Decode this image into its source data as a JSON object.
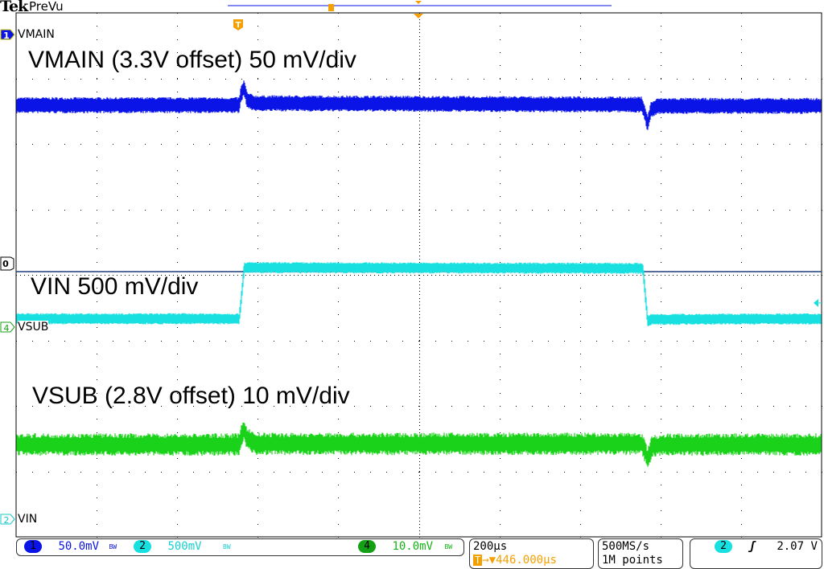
{
  "header": {
    "brand": "Tek",
    "mode": "PreVu"
  },
  "colors": {
    "ch1": "#0a14e6",
    "ch2": "#19e0e0",
    "ch4": "#19d219",
    "trigger": "#f5a000",
    "ref_line": "#1e3c78",
    "grid": "#000000"
  },
  "chart_data": {
    "type": "line",
    "x_unit": "µs (relative to trigger)",
    "xlim": [
      -554,
      1446
    ],
    "y_unit": "divisions",
    "ylim": [
      -4,
      4
    ],
    "grid": true,
    "divisions": {
      "horizontal": 10,
      "vertical": 8
    },
    "series": [
      {
        "name": "VMAIN",
        "channel": "1",
        "color": "#0a14e6",
        "points": [
          [
            -554,
            2.59
          ],
          [
            0,
            2.59
          ],
          [
            4,
            2.75
          ],
          [
            12,
            2.86
          ],
          [
            20,
            2.66
          ],
          [
            40,
            2.62
          ],
          [
            1000,
            2.6
          ],
          [
            1008,
            2.45
          ],
          [
            1014,
            2.3
          ],
          [
            1022,
            2.52
          ],
          [
            1040,
            2.58
          ],
          [
            1446,
            2.58
          ]
        ]
      },
      {
        "name": "VIN",
        "channel": "2",
        "color": "#19e0e0",
        "points": [
          [
            -554,
            -0.67
          ],
          [
            0,
            -0.67
          ],
          [
            12,
            0.11
          ],
          [
            1002,
            0.1
          ],
          [
            1014,
            -0.72
          ],
          [
            1022,
            -0.68
          ],
          [
            1446,
            -0.67
          ]
        ]
      },
      {
        "name": "VSUB",
        "channel": "4",
        "color": "#19d219",
        "points": [
          [
            -554,
            -2.59
          ],
          [
            0,
            -2.59
          ],
          [
            6,
            -2.45
          ],
          [
            12,
            -2.36
          ],
          [
            20,
            -2.5
          ],
          [
            40,
            -2.58
          ],
          [
            1000,
            -2.58
          ],
          [
            1008,
            -2.7
          ],
          [
            1014,
            -2.82
          ],
          [
            1024,
            -2.62
          ],
          [
            1050,
            -2.59
          ],
          [
            1446,
            -2.59
          ]
        ]
      }
    ],
    "annotations": [
      "VMAIN (3.3V offset) 50 mV/div",
      "VIN 500 mV/div",
      "VSUB (2.8V offset) 10 mV/div"
    ]
  },
  "channels": {
    "ch1": {
      "number": "1",
      "label": "VMAIN",
      "scale": "50.0mV",
      "bw": "BW"
    },
    "ch2": {
      "number": "2",
      "label": "VIN",
      "scale": "500mV",
      "bw": "BW"
    },
    "ch4": {
      "number": "4",
      "label": "VSUB",
      "scale": "10.0mV",
      "bw": "BW"
    },
    "ref": {
      "label": "0"
    }
  },
  "timebase": {
    "scale": "200µs",
    "trigger_marker": "T",
    "position": "→▼446.000µs"
  },
  "acquisition": {
    "sample_rate": "500MS/s",
    "record_length": "1M points"
  },
  "trigger": {
    "source": "2",
    "slope": "ʃ",
    "level": "2.07 V"
  }
}
